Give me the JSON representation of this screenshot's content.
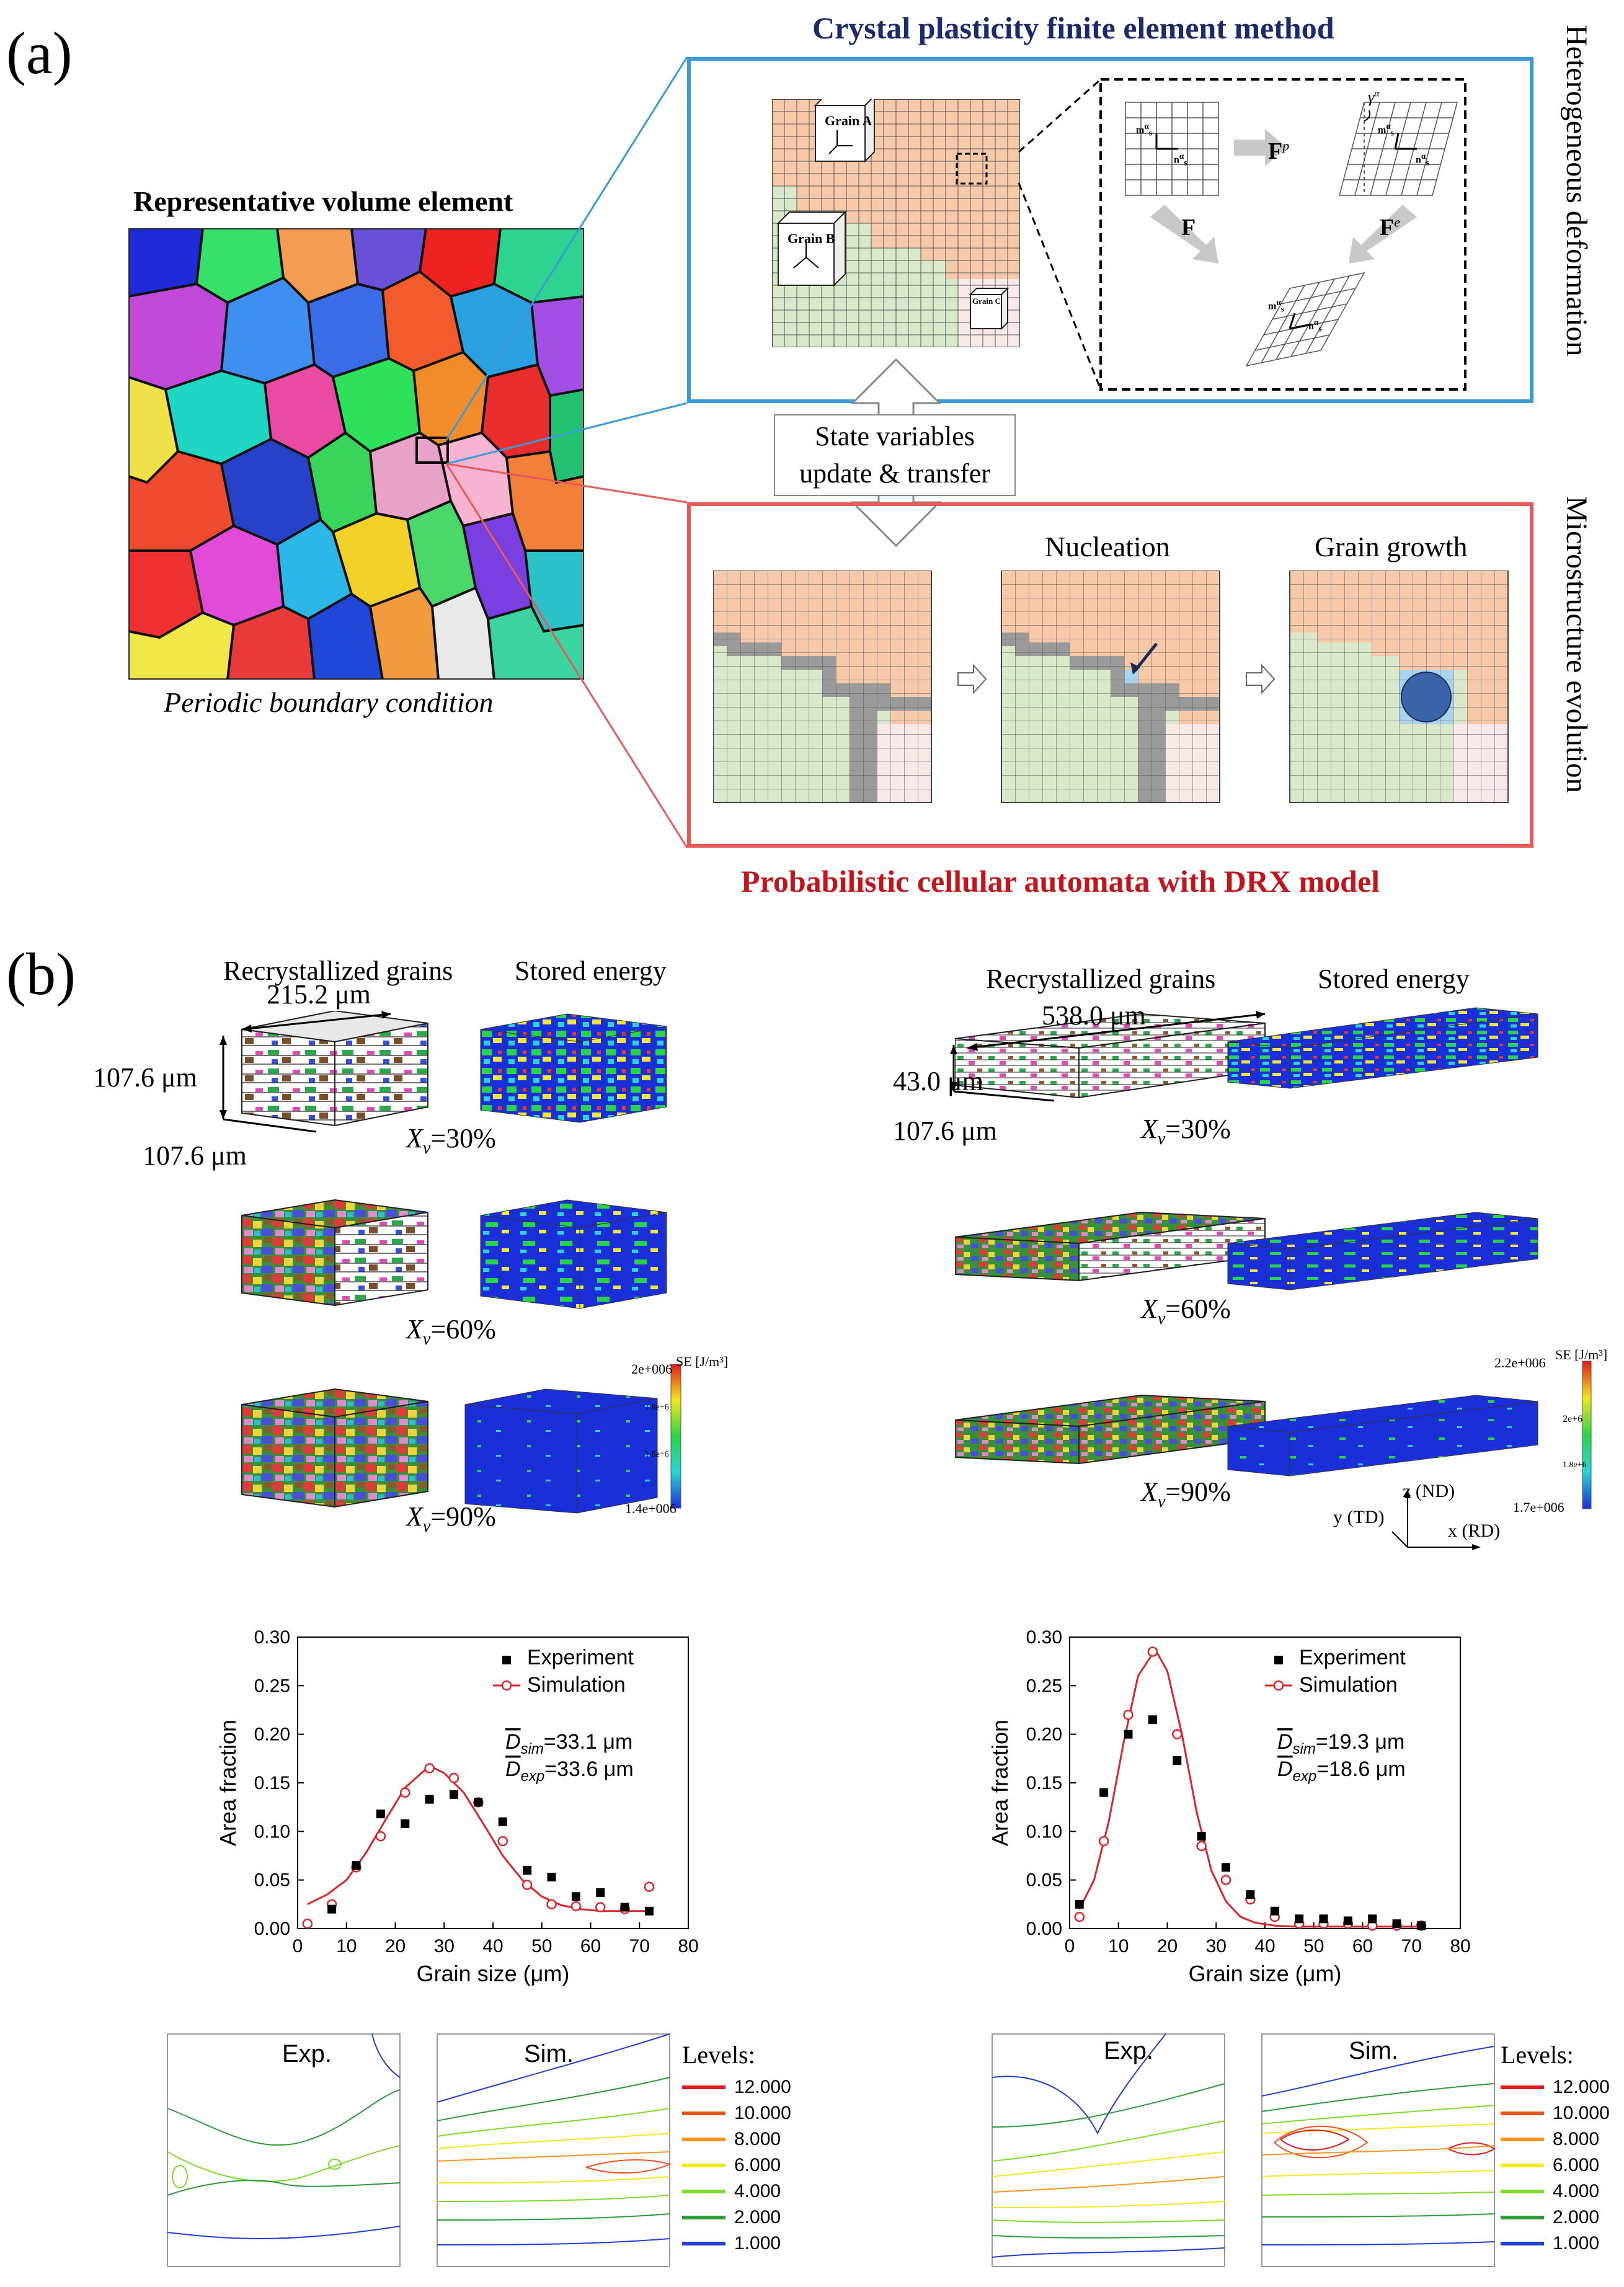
{
  "panel_a": {
    "label": "(a)",
    "rve_title": "Representative volume element",
    "rve_caption": "Periodic boundary condition",
    "cpfem_title": "Crystal plasticity finite element method",
    "side_top": "Heterogeneous deformation",
    "side_bottom": "Microstructure evolution",
    "grains": {
      "a": "Grain A",
      "b": "Grain B",
      "c": "Grain C"
    },
    "deform_labels": {
      "fp": "F",
      "fp_sup": "p",
      "f": "F",
      "fe": "F",
      "fe_sup": "e",
      "gamma": "γ",
      "gamma_sup": "α",
      "m": "m",
      "m_sup": "α",
      "m_sub": "s",
      "n": "n",
      "n_sup": "α",
      "n_sub": "s"
    },
    "state_line1": "State variables",
    "state_line2": "update & transfer",
    "nucleation": "Nucleation",
    "growth": "Grain growth",
    "pca_title": "Probabilistic cellular automata with DRX model"
  },
  "panel_b": {
    "label": "(b)",
    "left": {
      "recryst": "Recrystallized grains",
      "stored": "Stored energy",
      "dim_x": "215.2 μm",
      "dim_z": "107.6 μm",
      "dim_y": "107.6 μm",
      "xv30": "=30%",
      "xv60": "=60%",
      "xv90": "=90%",
      "se_label": "SE [J/m³]",
      "se_max": "2e+006",
      "se_mid1": "1.8e+6",
      "se_mid2": "1.6e+6",
      "se_min": "1.4e+006"
    },
    "right": {
      "recryst": "Recrystallized grains",
      "stored": "Stored energy",
      "dim_x": "538.0 μm",
      "dim_z": "43.0 μm",
      "dim_y": "107.6 μm",
      "xv30": "=30%",
      "xv60": "=60%",
      "xv90": "=90%",
      "se_label": "SE [J/m³]",
      "se_max": "2.2e+006",
      "se_mid1": "2e+6",
      "se_mid2": "1.8e+6",
      "se_min": "1.7e+006",
      "axis_z": "z (ND)",
      "axis_y": "y (TD)",
      "axis_x": "x (RD)"
    },
    "xv_symbol": "X",
    "xv_sub": "v"
  },
  "chart_data": [
    {
      "type": "scatter",
      "title": "",
      "xlabel": "Grain size (μm)",
      "ylabel": "Area fraction",
      "xlim": [
        0,
        80
      ],
      "ylim": [
        0,
        0.3
      ],
      "xticks": [
        "0",
        "10",
        "20",
        "30",
        "40",
        "50",
        "60",
        "70",
        "80"
      ],
      "yticks": [
        "0.00",
        "0.05",
        "0.10",
        "0.15",
        "0.20",
        "0.25",
        "0.30"
      ],
      "legend": [
        "Experiment",
        "Simulation"
      ],
      "annot_sim": "=33.1 μm",
      "annot_exp": "=33.6 μm",
      "annot_sim_sub": "sim",
      "annot_exp_sub": "exp",
      "series": [
        {
          "name": "Experiment",
          "x": [
            7,
            12,
            17,
            22,
            27,
            32,
            37,
            42,
            47,
            52,
            57,
            62,
            67,
            72
          ],
          "y": [
            0.02,
            0.065,
            0.118,
            0.108,
            0.133,
            0.138,
            0.13,
            0.11,
            0.06,
            0.053,
            0.033,
            0.037,
            0.022,
            0.018
          ]
        },
        {
          "name": "Simulation",
          "x": [
            2,
            7,
            12,
            17,
            22,
            27,
            32,
            37,
            42,
            47,
            52,
            57,
            62,
            67,
            72
          ],
          "y": [
            0.005,
            0.025,
            0.063,
            0.095,
            0.14,
            0.165,
            0.155,
            0.13,
            0.09,
            0.045,
            0.025,
            0.023,
            0.022,
            0.02,
            0.043
          ]
        },
        {
          "name": "Simulation fit",
          "x": [
            2,
            6,
            10,
            14,
            18,
            22,
            26,
            28,
            30,
            34,
            38,
            42,
            46,
            50,
            54,
            58,
            62,
            66,
            70,
            72
          ],
          "y": [
            0.025,
            0.035,
            0.05,
            0.078,
            0.112,
            0.145,
            0.163,
            0.165,
            0.16,
            0.14,
            0.108,
            0.075,
            0.05,
            0.033,
            0.024,
            0.02,
            0.018,
            0.018,
            0.018,
            0.018
          ]
        }
      ]
    },
    {
      "type": "scatter",
      "title": "",
      "xlabel": "Grain size (μm)",
      "ylabel": "Area fraction",
      "xlim": [
        0,
        80
      ],
      "ylim": [
        0,
        0.3
      ],
      "xticks": [
        "0",
        "10",
        "20",
        "30",
        "40",
        "50",
        "60",
        "70",
        "80"
      ],
      "yticks": [
        "0.00",
        "0.05",
        "0.10",
        "0.15",
        "0.20",
        "0.25",
        "0.30"
      ],
      "legend": [
        "Experiment",
        "Simulation"
      ],
      "annot_sim": "=19.3 μm",
      "annot_exp": "=18.6 μm",
      "annot_sim_sub": "sim",
      "annot_exp_sub": "exp",
      "series": [
        {
          "name": "Experiment",
          "x": [
            2,
            7,
            12,
            17,
            22,
            27,
            32,
            37,
            42,
            47,
            52,
            57,
            62,
            67,
            72
          ],
          "y": [
            0.025,
            0.14,
            0.2,
            0.215,
            0.173,
            0.095,
            0.063,
            0.035,
            0.018,
            0.01,
            0.01,
            0.008,
            0.01,
            0.005,
            0.003
          ]
        },
        {
          "name": "Simulation",
          "x": [
            2,
            7,
            12,
            17,
            22,
            27,
            32,
            37,
            42,
            47,
            52,
            57,
            62,
            67,
            72
          ],
          "y": [
            0.012,
            0.09,
            0.22,
            0.285,
            0.2,
            0.085,
            0.05,
            0.03,
            0.012,
            0.005,
            0.005,
            0.005,
            0.003,
            0.003,
            0.003
          ]
        },
        {
          "name": "Simulation fit",
          "x": [
            2,
            5,
            8,
            11,
            14,
            17,
            18,
            20,
            23,
            26,
            29,
            32,
            35,
            38,
            42,
            46,
            50,
            60,
            70,
            72
          ],
          "y": [
            0.02,
            0.05,
            0.11,
            0.19,
            0.26,
            0.283,
            0.283,
            0.265,
            0.2,
            0.12,
            0.06,
            0.028,
            0.012,
            0.006,
            0.003,
            0.002,
            0.002,
            0.002,
            0.002,
            0.002
          ]
        }
      ]
    }
  ],
  "contours": {
    "left": {
      "exp": "Exp.",
      "sim": "Sim."
    },
    "right": {
      "exp": "Exp.",
      "sim": "Sim."
    },
    "levels_title": "Levels:",
    "levels": [
      {
        "label": "12.000",
        "color": "#e31a1c"
      },
      {
        "label": "10.000",
        "color": "#f0521e"
      },
      {
        "label": "8.000",
        "color": "#f5961f"
      },
      {
        "label": "6.000",
        "color": "#f2e81c"
      },
      {
        "label": "4.000",
        "color": "#7ddc2a"
      },
      {
        "label": "2.000",
        "color": "#2e9b3a"
      },
      {
        "label": "1.000",
        "color": "#2040d0"
      }
    ]
  }
}
